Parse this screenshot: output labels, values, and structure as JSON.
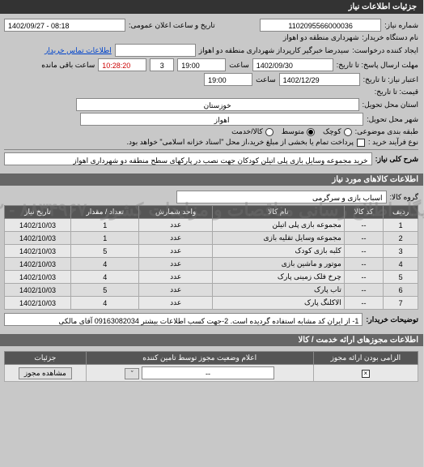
{
  "header": "جزئیات اطلاعات نیاز",
  "top": {
    "req_num_label": "شماره نیاز:",
    "req_num": "1102095566000036",
    "pub_date_label": "تاریخ و ساعت اعلان عمومی:",
    "pub_date": "1402/09/27 - 08:18",
    "buyer_org_label": "نام دستگاه خریدار:",
    "buyer_org": "شهرداری منطقه دو اهواز",
    "requester_label": "ایجاد کننده درخواست:",
    "requester": "سیدرضا خبرگیر کارپرداز  شهرداری منطقه دو اهواز",
    "contact_link": "اطلاعات تماس خریدار"
  },
  "deadlines": {
    "reply_until_label": "مهلت ارسال پاسخ: تا تاریخ:",
    "reply_date": "1402/09/30",
    "time_label": "ساعت",
    "reply_time": "19:00",
    "days_left": "3",
    "hours_left": "10:28:20",
    "remaining_label": "ساعت باقی مانده",
    "valid_until_label": "اعتبار نیاز: تا تاریخ:",
    "valid_date": "1402/12/29",
    "valid_time": "19:00",
    "price_until_label": "قیمت: تا تاریخ:"
  },
  "location": {
    "province_label": "استان محل تحویل:",
    "province": "خوزستان",
    "city_label": "شهر محل تحویل:",
    "city": "اهواز"
  },
  "budget": {
    "label": "طبقه بندی موضوعی:",
    "small": "کوچک",
    "medium": "متوسط",
    "cash": "کالا/خدمت"
  },
  "purchase": {
    "label": "نوع فرآیند خرید :",
    "note": "پرداخت تمام یا بخشی از مبلغ خرید،از محل \"اسناد خزانه اسلامی\" خواهد بود."
  },
  "desc": {
    "label": "شرح کلی نیاز:",
    "text": "خرید مجموعه وسایل بازی پلی اتیلن کودکان جهت نصب در پارکهای سطح منطقه دو شهرداری اهواز"
  },
  "goods_header": "اطلاعات کالاهای مورد نیاز",
  "group": {
    "label": "گروه کالا:",
    "text": "اسباب بازی و سرگرمی"
  },
  "table": {
    "cols": [
      "ردیف",
      "کد کالا",
      "نام کالا",
      "واحد شمارش",
      "تعداد / مقدار",
      "تاریخ نیاز"
    ],
    "rows": [
      [
        "1",
        "--",
        "مجموعه بازی پلی اتیلن",
        "عدد",
        "1",
        "1402/10/03"
      ],
      [
        "2",
        "--",
        "مجموعه وسایل تقلیه بازی",
        "عدد",
        "1",
        "1402/10/03"
      ],
      [
        "3",
        "--",
        "کلبه بازی کودک",
        "عدد",
        "5",
        "1402/10/03"
      ],
      [
        "4",
        "--",
        "موتور و ماشین بازی",
        "عدد",
        "4",
        "1402/10/03"
      ],
      [
        "5",
        "--",
        "چرخ فلک زمینی پارک",
        "عدد",
        "4",
        "1402/10/03"
      ],
      [
        "6",
        "--",
        "تاب پارک",
        "عدد",
        "5",
        "1402/10/03"
      ],
      [
        "7",
        "--",
        "الاکلنگ پارک",
        "عدد",
        "4",
        "1402/10/03"
      ]
    ]
  },
  "notes": {
    "label": "توضیحات خریدار:",
    "text": "1- از ایران کد مشابه استفاده گردیده است. 2-جهت کسب اطلاعات بیشتر 09163082034 آقای مالکی"
  },
  "perm_header": "اطلاعات مجوزهای ارائه خدمت / کالا",
  "perm_table": {
    "cols": [
      "الزامی بودن ارائه مجوز",
      "اعلام وضعیت مجوز توسط تامین کننده",
      "جزئیات"
    ],
    "view_btn": "مشاهده مجوز",
    "dash": "--",
    "caret": "ˇ"
  },
  "watermark": "پایگاه اطلاع رسانی مناقصات و مزایدات کشور ۸۸۳۴۹۶۷۰ - ۰۲"
}
